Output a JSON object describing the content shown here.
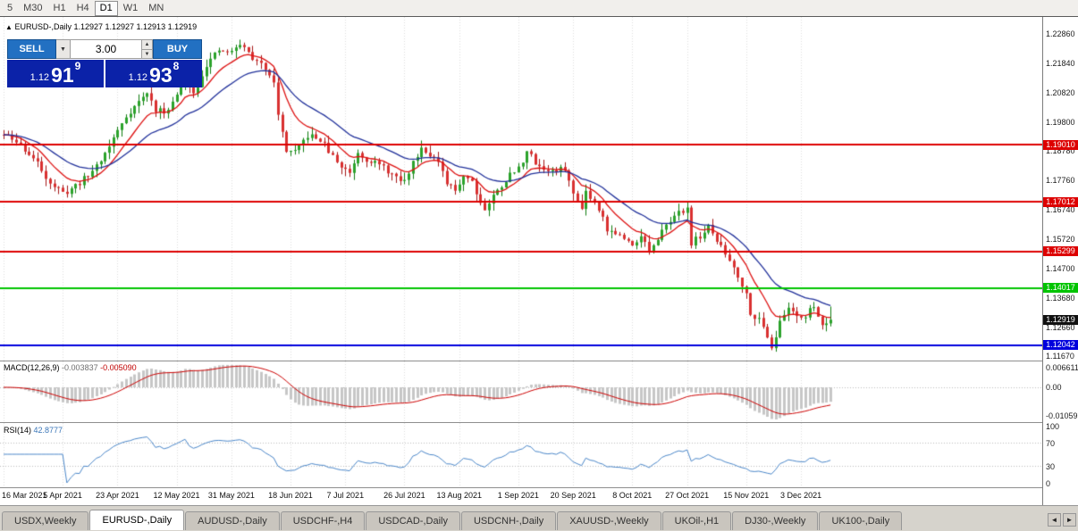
{
  "icons": {
    "dropdown": "▼",
    "spin_up": "▲",
    "spin_down": "▼",
    "scroll_left": "◄",
    "scroll_right": "►",
    "header_arrow": "▲"
  },
  "colors": {
    "up": "#2ba32b",
    "up_dark": "#0f7c0f",
    "down": "#d93030",
    "down_dark": "#a31515",
    "ma_fast": "#dd1111",
    "ma_slow": "#20309a",
    "grid": "#dcdcdc",
    "macd_hist": "#c6c6c6",
    "macd_signal": "#cc0000",
    "rsi_line": "#4a86c8",
    "level_dots": "#bdbdbd",
    "tag_black": "#111111"
  },
  "toolbar": {
    "timeframes": [
      {
        "label": "5",
        "active": false
      },
      {
        "label": "M30",
        "active": false
      },
      {
        "label": "H1",
        "active": false
      },
      {
        "label": "H4",
        "active": false
      },
      {
        "label": "D1",
        "active": true
      },
      {
        "label": "W1",
        "active": false
      },
      {
        "label": "MN",
        "active": false
      }
    ]
  },
  "chart_header": {
    "symbol": "EURUSD-,Daily",
    "ohlc_text": "1.12927 1.12927 1.12913 1.12919"
  },
  "trade_panel": {
    "sell_label": "SELL",
    "buy_label": "BUY",
    "volume": "3.00",
    "sell_price": {
      "prefix": "1.12",
      "big": "91",
      "sup": "9"
    },
    "buy_price": {
      "prefix": "1.12",
      "big": "93",
      "sup": "8"
    }
  },
  "price_axis_labels": [
    "1.22860",
    "1.21840",
    "1.20820",
    "1.19800",
    "1.18780",
    "1.17760",
    "1.16740",
    "1.15720",
    "1.14700",
    "1.13680",
    "1.12660",
    "1.11670"
  ],
  "levels": [
    {
      "price": 1.1901,
      "label": "1.19010",
      "type": "resistance",
      "color": "#dd0000"
    },
    {
      "price": 1.17012,
      "label": "1.17012",
      "type": "resistance",
      "color": "#dd0000"
    },
    {
      "price": 1.15299,
      "label": "1.15299",
      "type": "resistance",
      "color": "#dd0000"
    },
    {
      "price": 1.14017,
      "label": "1.14017",
      "type": "support",
      "color": "#00c400"
    },
    {
      "price": 1.12042,
      "label": "1.12042",
      "type": "support",
      "color": "#0000dd"
    }
  ],
  "current_price": {
    "label": "1.12919",
    "value": 1.12919
  },
  "date_axis": [
    "16 Mar 2021",
    "5 Apr 2021",
    "23 Apr 2021",
    "12 May 2021",
    "31 May 2021",
    "18 Jun 2021",
    "7 Jul 2021",
    "26 Jul 2021",
    "13 Aug 2021",
    "1 Sep 2021",
    "20 Sep 2021",
    "8 Oct 2021",
    "27 Oct 2021",
    "15 Nov 2021",
    "3 Dec 2021"
  ],
  "macd": {
    "label": "MACD(12,26,9)",
    "main_value": "-0.003837",
    "signal_value": "-0.005090",
    "axis_labels": [
      "0.006611",
      "0.00",
      "-0.01059"
    ],
    "params": {
      "fast": 12,
      "slow": 26,
      "signal": 9
    }
  },
  "rsi": {
    "label": "RSI(14)",
    "value": "42.8777",
    "axis_labels": [
      "100",
      "70",
      "30",
      "0"
    ],
    "levels": [
      70,
      30
    ],
    "period": 14
  },
  "tabs": [
    {
      "label": "USDX,Weekly",
      "active": false
    },
    {
      "label": "EURUSD-,Daily",
      "active": true
    },
    {
      "label": "AUDUSD-,Daily",
      "active": false
    },
    {
      "label": "USDCHF-,H4",
      "active": false
    },
    {
      "label": "USDCAD-,Daily",
      "active": false
    },
    {
      "label": "USDCNH-,Daily",
      "active": false
    },
    {
      "label": "XAUUSD-,Weekly",
      "active": false
    },
    {
      "label": "UKOil-,H1",
      "active": false
    },
    {
      "label": "DJ30-,Weekly",
      "active": false
    },
    {
      "label": "UK100-,Daily",
      "active": false
    }
  ],
  "chart_data": {
    "type": "candlestick",
    "symbol": "EURUSD-",
    "timeframe": "Daily",
    "bars": 197,
    "seed": 11,
    "ylim": [
      1.115,
      1.2345
    ],
    "tick_bars": [
      0,
      14,
      27,
      41,
      54,
      68,
      81,
      95,
      108,
      122,
      135,
      149,
      162,
      176,
      189
    ],
    "price_anchors": [
      [
        0,
        1.1935
      ],
      [
        4,
        1.19
      ],
      [
        8,
        1.1835
      ],
      [
        11,
        1.177
      ],
      [
        14,
        1.173
      ],
      [
        16,
        1.1748
      ],
      [
        20,
        1.1792
      ],
      [
        24,
        1.187
      ],
      [
        27,
        1.195
      ],
      [
        29,
        1.2
      ],
      [
        31,
        1.2035
      ],
      [
        34,
        1.208
      ],
      [
        36,
        1.2022
      ],
      [
        38,
        1.2012
      ],
      [
        41,
        1.207
      ],
      [
        43,
        1.2148
      ],
      [
        45,
        1.2078
      ],
      [
        48,
        1.218
      ],
      [
        51,
        1.2226
      ],
      [
        54,
        1.2222
      ],
      [
        56,
        1.2252
      ],
      [
        58,
        1.222
      ],
      [
        60,
        1.2186
      ],
      [
        62,
        1.217
      ],
      [
        64,
        1.2126
      ],
      [
        65,
        1.2
      ],
      [
        67,
        1.1882
      ],
      [
        69,
        1.1872
      ],
      [
        72,
        1.1932
      ],
      [
        75,
        1.1918
      ],
      [
        78,
        1.1858
      ],
      [
        80,
        1.1824
      ],
      [
        82,
        1.1806
      ],
      [
        84,
        1.1876
      ],
      [
        86,
        1.1852
      ],
      [
        88,
        1.1838
      ],
      [
        91,
        1.181
      ],
      [
        93,
        1.1782
      ],
      [
        95,
        1.1772
      ],
      [
        97,
        1.184
      ],
      [
        99,
        1.1892
      ],
      [
        101,
        1.187
      ],
      [
        103,
        1.1836
      ],
      [
        105,
        1.1762
      ],
      [
        107,
        1.1742
      ],
      [
        109,
        1.1796
      ],
      [
        111,
        1.1776
      ],
      [
        113,
        1.17
      ],
      [
        114,
        1.1676
      ],
      [
        116,
        1.1722
      ],
      [
        118,
        1.176
      ],
      [
        120,
        1.1796
      ],
      [
        122,
        1.1818
      ],
      [
        124,
        1.1878
      ],
      [
        126,
        1.184
      ],
      [
        128,
        1.1816
      ],
      [
        131,
        1.1806
      ],
      [
        133,
        1.182
      ],
      [
        135,
        1.1726
      ],
      [
        137,
        1.1688
      ],
      [
        138,
        1.174
      ],
      [
        140,
        1.17
      ],
      [
        142,
        1.166
      ],
      [
        143,
        1.16
      ],
      [
        145,
        1.1596
      ],
      [
        147,
        1.157
      ],
      [
        149,
        1.1556
      ],
      [
        151,
        1.1586
      ],
      [
        153,
        1.153
      ],
      [
        155,
        1.156
      ],
      [
        157,
        1.1634
      ],
      [
        159,
        1.165
      ],
      [
        161,
        1.1672
      ],
      [
        162,
        1.1682
      ],
      [
        163,
        1.156
      ],
      [
        165,
        1.1582
      ],
      [
        167,
        1.1612
      ],
      [
        169,
        1.1568
      ],
      [
        171,
        1.152
      ],
      [
        173,
        1.1478
      ],
      [
        174,
        1.1446
      ],
      [
        176,
        1.138
      ],
      [
        177,
        1.132
      ],
      [
        179,
        1.129
      ],
      [
        181,
        1.124
      ],
      [
        182,
        1.1198
      ],
      [
        184,
        1.128
      ],
      [
        186,
        1.1336
      ],
      [
        188,
        1.1312
      ],
      [
        190,
        1.13
      ],
      [
        192,
        1.1344
      ],
      [
        194,
        1.1272
      ],
      [
        196,
        1.12919
      ]
    ],
    "peak": {
      "bar": 56,
      "high": 1.2266
    },
    "bottom": {
      "bar": 182,
      "low": 1.1186
    },
    "last_close": 1.12919,
    "ma": [
      {
        "period": 10,
        "color": "#dd1111"
      },
      {
        "period": 24,
        "color": "#20309a"
      }
    ]
  }
}
